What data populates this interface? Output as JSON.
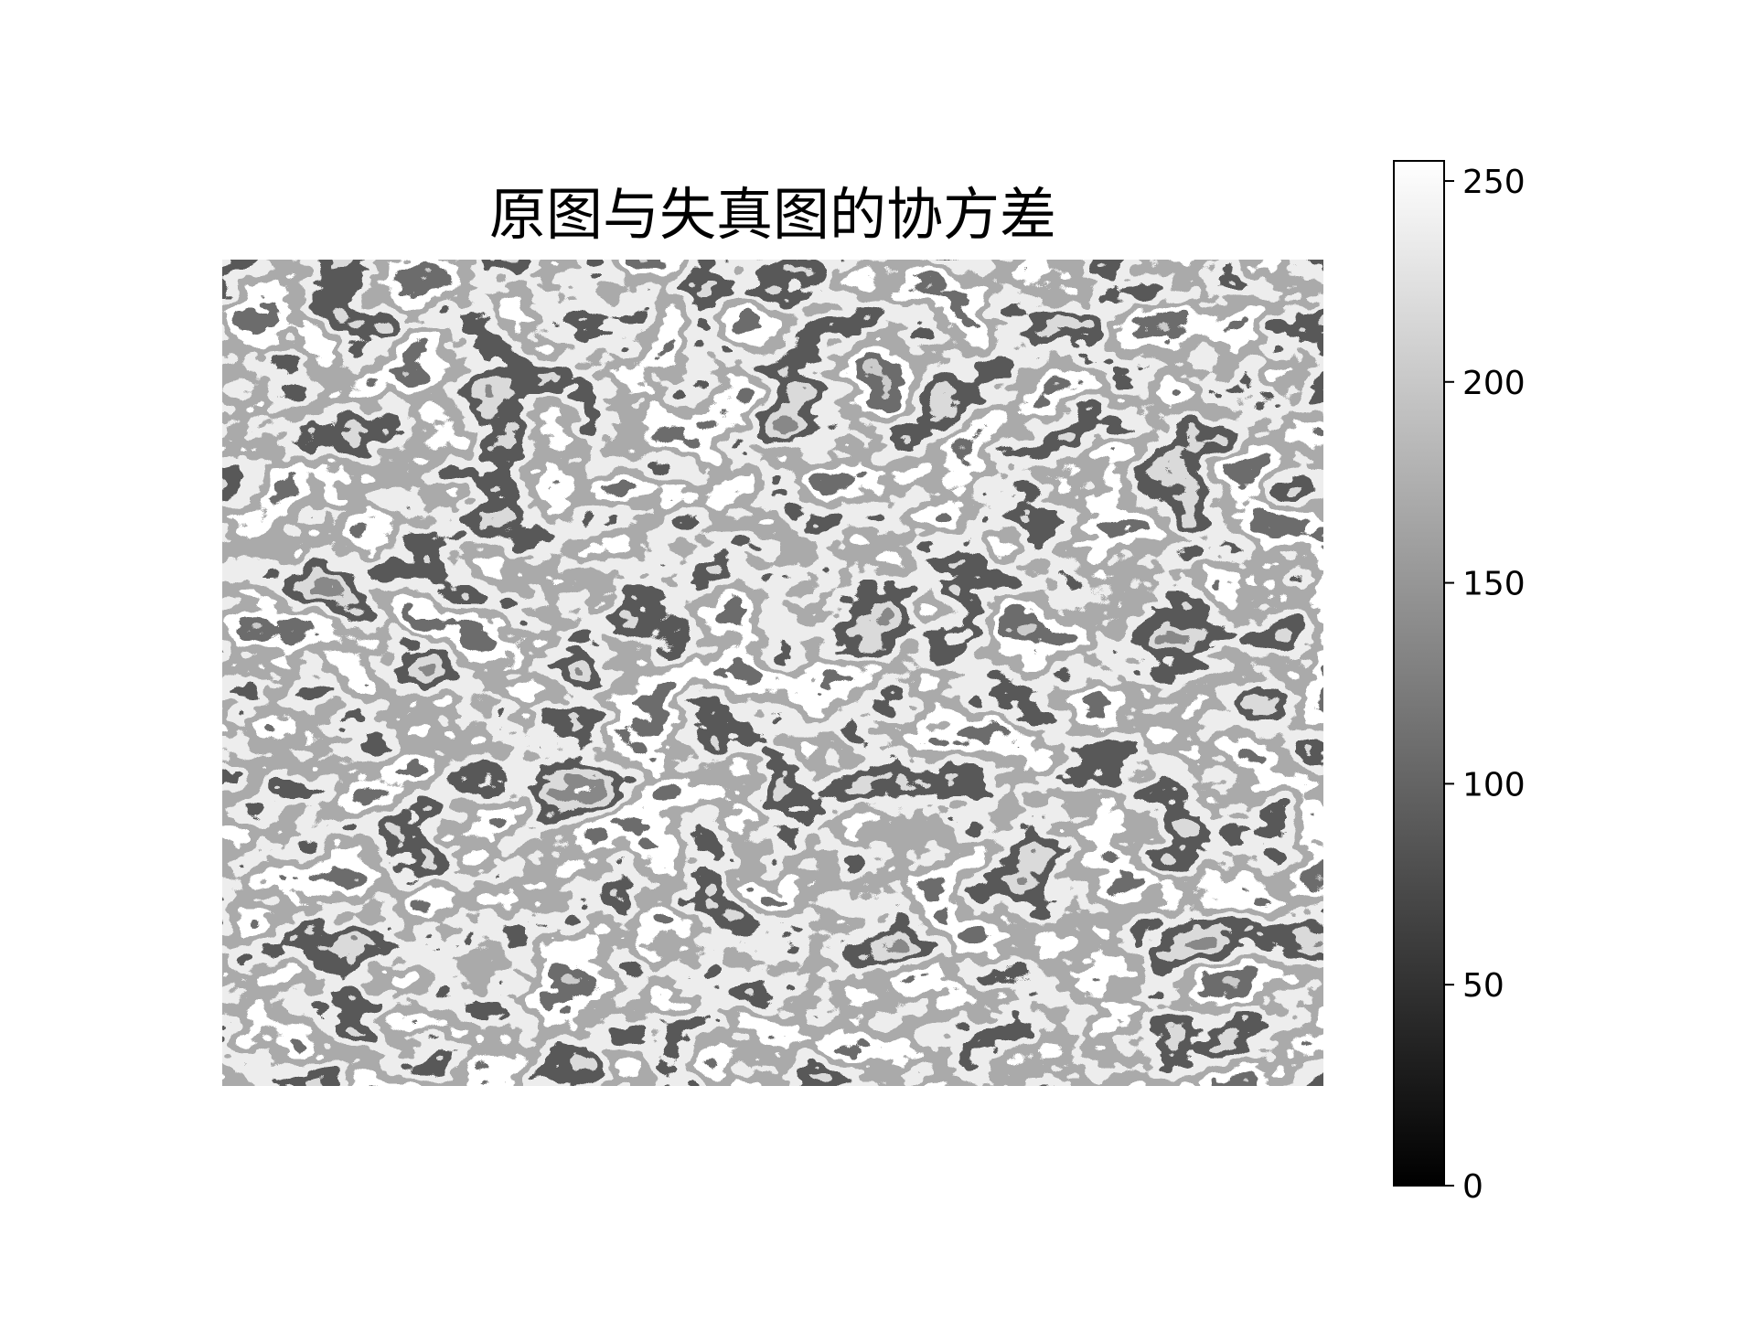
{
  "chart_data": {
    "type": "heatmap",
    "title": "原图与失真图的协方差",
    "colormap": "gray",
    "image_axes_visible": false,
    "colorbar": {
      "label": "",
      "range": [
        0,
        255
      ],
      "ticks": [
        0,
        50,
        100,
        150,
        200,
        250
      ],
      "tick_labels": [
        "0",
        "50",
        "100",
        "150",
        "200",
        "250"
      ],
      "color_low": "#000000",
      "color_high": "#ffffff"
    }
  }
}
